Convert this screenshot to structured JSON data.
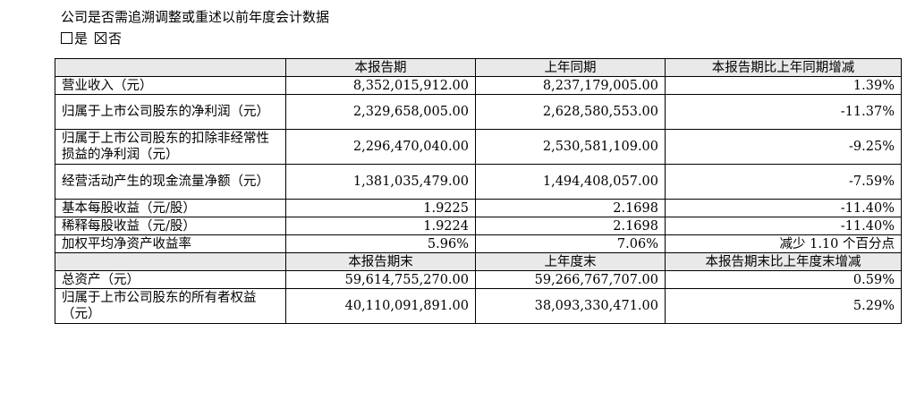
{
  "question": "公司是否需追溯调整或重述以前年度会计数据",
  "options": [
    {
      "label": "是",
      "checked": false
    },
    {
      "label": "否",
      "checked": true
    }
  ],
  "table": {
    "header1": [
      "",
      "本报告期",
      "上年同期",
      "本报告期比上年同期增减"
    ],
    "rows1": [
      [
        "营业收入（元）",
        "8,352,015,912.00",
        "8,237,179,005.00",
        "1.39%"
      ],
      [
        "归属于上市公司股东的净利润（元）",
        "2,329,658,005.00",
        "2,628,580,553.00",
        "-11.37%"
      ],
      [
        "归属于上市公司股东的扣除非经常性损益的净利润（元）",
        "2,296,470,040.00",
        "2,530,581,109.00",
        "-9.25%"
      ],
      [
        "经营活动产生的现金流量净额（元）",
        "1,381,035,479.00",
        "1,494,408,057.00",
        "-7.59%"
      ],
      [
        "基本每股收益（元/股）",
        "1.9225",
        "2.1698",
        "-11.40%"
      ],
      [
        "稀释每股收益（元/股）",
        "1.9224",
        "2.1698",
        "-11.40%"
      ],
      [
        "加权平均净资产收益率",
        "5.96%",
        "7.06%",
        "减少 1.10 个百分点"
      ]
    ],
    "header2": [
      "",
      "本报告期末",
      "上年度末",
      "本报告期末比上年度末增减"
    ],
    "rows2": [
      [
        "总资产（元）",
        "59,614,755,270.00",
        "59,266,767,707.00",
        "0.59%"
      ],
      [
        "归属于上市公司股东的所有者权益（元）",
        "40,110,091,891.00",
        "38,093,330,471.00",
        "5.29%"
      ]
    ]
  }
}
